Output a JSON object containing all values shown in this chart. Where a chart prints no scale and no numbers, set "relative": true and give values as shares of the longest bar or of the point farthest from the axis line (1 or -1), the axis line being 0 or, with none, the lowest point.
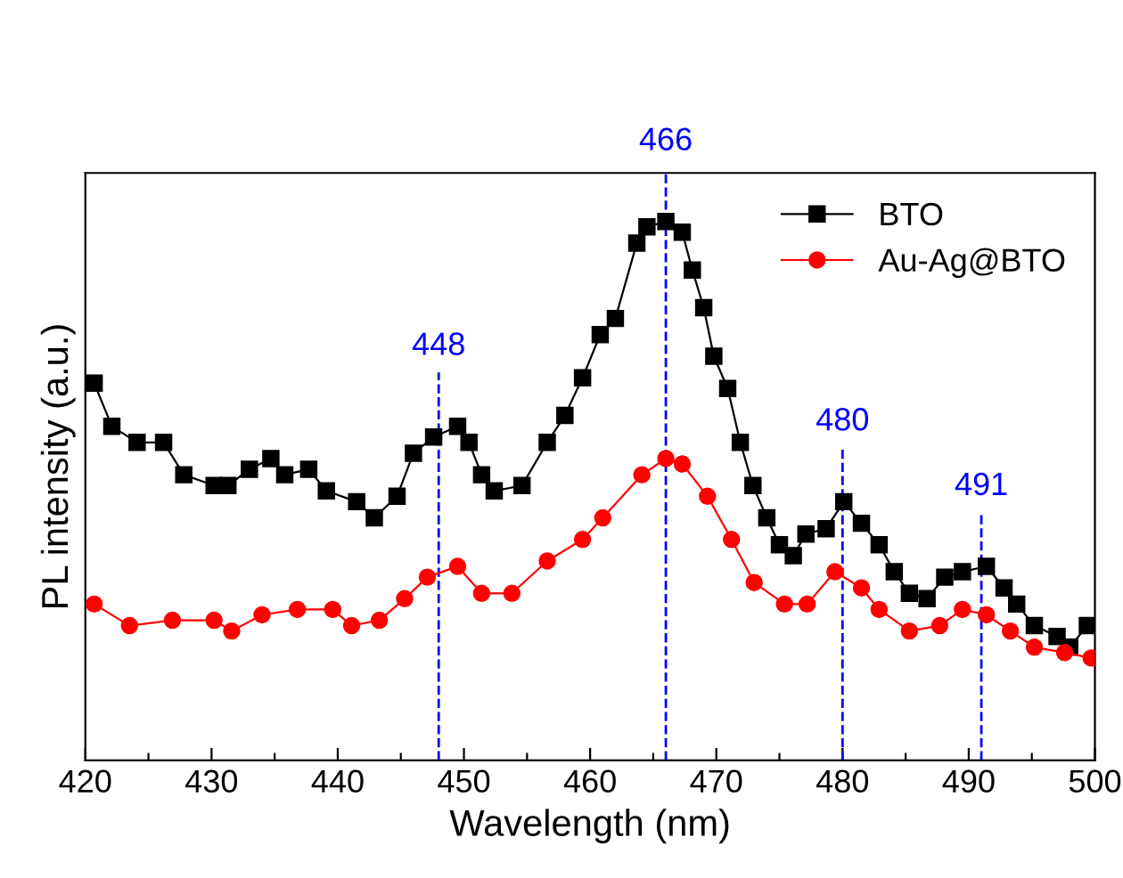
{
  "chart_data": {
    "type": "line",
    "xlabel": "Wavelength (nm)",
    "ylabel": "PL intensity (a.u.)",
    "relative": true,
    "xlim": [
      420,
      500
    ],
    "xticks": [
      420,
      {
        "value": 425,
        "label": null
      },
      430,
      {
        "value": 435,
        "label": null
      },
      440,
      {
        "value": 445,
        "label": null
      },
      450,
      {
        "value": 455,
        "label": null
      },
      460,
      {
        "value": 465,
        "label": null
      },
      470,
      {
        "value": 475,
        "label": null
      },
      480,
      {
        "value": 485,
        "label": null
      },
      490,
      {
        "value": 495,
        "label": null
      },
      500
    ],
    "legend": "top right",
    "grid": false,
    "line_style": "solid",
    "series": [
      {
        "name": "BTO",
        "color": "#000000",
        "marker": "square",
        "x": [
          420.7,
          422.1,
          424.1,
          426.2,
          427.8,
          430.2,
          431.3,
          433.0,
          434.7,
          435.8,
          437.7,
          439.1,
          441.5,
          442.9,
          444.7,
          446.0,
          447.6,
          449.5,
          450.4,
          451.4,
          452.4,
          454.6,
          456.6,
          458.0,
          459.4,
          460.8,
          462.0,
          463.7,
          464.5,
          466.0,
          467.3,
          468.1,
          469.0,
          469.8,
          470.9,
          471.9,
          472.9,
          474.0,
          475.0,
          476.1,
          477.1,
          478.7,
          480.1,
          481.5,
          482.9,
          484.1,
          485.3,
          486.7,
          488.1,
          489.5,
          491.4,
          492.8,
          493.8,
          495.2,
          497.0,
          498.0,
          499.4
        ],
        "values": [
          0.7,
          0.62,
          0.59,
          0.59,
          0.53,
          0.51,
          0.51,
          0.54,
          0.56,
          0.53,
          0.54,
          0.5,
          0.48,
          0.45,
          0.49,
          0.57,
          0.6,
          0.62,
          0.59,
          0.53,
          0.5,
          0.51,
          0.59,
          0.64,
          0.71,
          0.79,
          0.82,
          0.96,
          0.99,
          1.0,
          0.98,
          0.91,
          0.84,
          0.75,
          0.69,
          0.59,
          0.51,
          0.45,
          0.4,
          0.38,
          0.42,
          0.43,
          0.48,
          0.44,
          0.4,
          0.35,
          0.31,
          0.3,
          0.34,
          0.35,
          0.36,
          0.32,
          0.29,
          0.25,
          0.23,
          0.21,
          0.25
        ]
      },
      {
        "name": "Au-Ag@BTO",
        "color": "#ff0000",
        "marker": "circle",
        "x": [
          420.7,
          423.5,
          426.9,
          430.2,
          431.6,
          434.0,
          436.8,
          439.6,
          441.1,
          443.3,
          445.3,
          447.1,
          449.5,
          451.4,
          453.8,
          456.6,
          459.4,
          461.0,
          464.1,
          466.0,
          467.3,
          469.3,
          471.2,
          473.0,
          475.4,
          477.2,
          479.4,
          481.5,
          482.9,
          485.3,
          487.7,
          489.5,
          491.4,
          493.3,
          495.2,
          497.6,
          499.7
        ],
        "values": [
          0.29,
          0.25,
          0.26,
          0.26,
          0.24,
          0.27,
          0.28,
          0.28,
          0.25,
          0.26,
          0.3,
          0.34,
          0.36,
          0.31,
          0.31,
          0.37,
          0.41,
          0.45,
          0.53,
          0.56,
          0.55,
          0.49,
          0.41,
          0.33,
          0.29,
          0.29,
          0.35,
          0.32,
          0.28,
          0.24,
          0.25,
          0.28,
          0.27,
          0.24,
          0.21,
          0.2,
          0.19
        ]
      }
    ],
    "ref_lines": [
      {
        "axis": "x",
        "value": 448,
        "label": "448",
        "color": "#0000ff",
        "line_style": "dashed"
      },
      {
        "axis": "x",
        "value": 466,
        "label": "466",
        "color": "#0000ff",
        "line_style": "dashed"
      },
      {
        "axis": "x",
        "value": 480,
        "label": "480",
        "color": "#0000ff",
        "line_style": "dashed"
      },
      {
        "axis": "x",
        "value": 491,
        "label": "491",
        "color": "#0000ff",
        "line_style": "dashed"
      }
    ]
  }
}
